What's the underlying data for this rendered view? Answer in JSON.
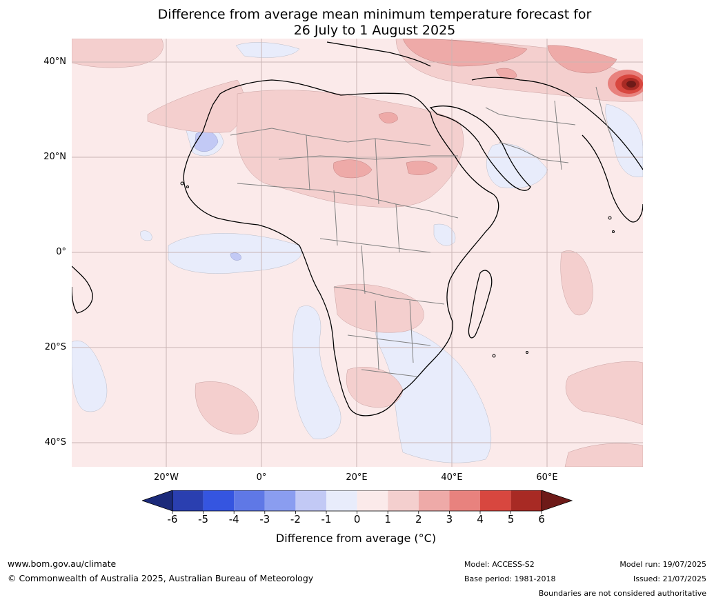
{
  "title_line1": "Difference from average mean minimum temperature forecast for",
  "title_line2": "26 July to 1 August 2025",
  "lat_labels": [
    "40°N",
    "20°N",
    "0°",
    "20°S",
    "40°S"
  ],
  "lon_labels": [
    "20°W",
    "0°",
    "20°E",
    "40°E",
    "60°E"
  ],
  "colorbar": {
    "ticks": [
      "-6",
      "-5",
      "-4",
      "-3",
      "-2",
      "-1",
      "0",
      "1",
      "2",
      "3",
      "4",
      "5",
      "6"
    ],
    "colors": [
      "#1b2a7a",
      "#2a3fb0",
      "#3555e0",
      "#5f78e6",
      "#8a9df0",
      "#c2c9f5",
      "#e8ecfb",
      "#fbeaea",
      "#f4cfce",
      "#eeaaa8",
      "#e8827e",
      "#d8473f",
      "#a82a24",
      "#6e1a18"
    ],
    "label": "Difference from average (°C)"
  },
  "footer": {
    "website": "www.bom.gov.au/climate",
    "copyright": "© Commonwealth of Australia 2025, Australian Bureau of Meteorology",
    "model": "Model: ACCESS-S2",
    "base_period": "Base period: 1981-2018",
    "model_run": "Model run: 19/07/2025",
    "issued": "Issued: 21/07/2025",
    "disclaimer": "Boundaries are not considered authoritative"
  }
}
